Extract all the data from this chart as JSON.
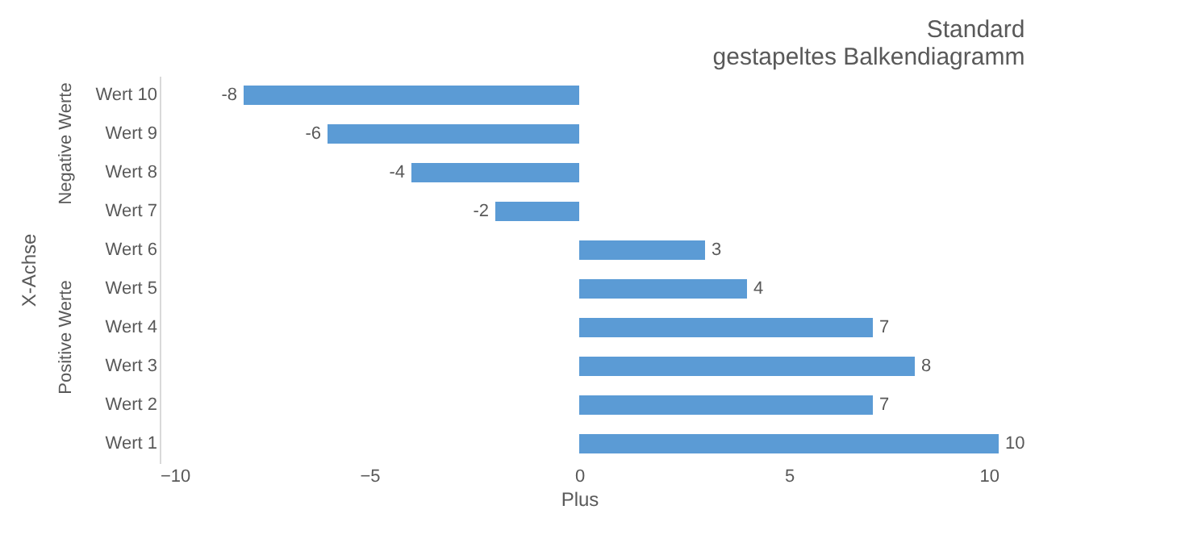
{
  "chart_data": {
    "type": "bar",
    "orientation": "horizontal",
    "title": [
      "Standard",
      "gestapeltes Balkendiagramm"
    ],
    "xlabel": "Plus",
    "ylabel": "X-Achse",
    "categories": [
      "Wert 10",
      "Wert 9",
      "Wert 8",
      "Wert 7",
      "Wert 6",
      "Wert 5",
      "Wert 4",
      "Wert 3",
      "Wert 2",
      "Wert 1"
    ],
    "values": [
      -8,
      -6,
      -4,
      -2,
      3,
      4,
      7,
      8,
      7,
      10
    ],
    "color": "#5b9bd5",
    "xlim": [
      -10,
      10
    ],
    "xticks": [
      -10,
      -5,
      0,
      5,
      10
    ],
    "annotations": [
      "Positive Werte",
      "Negative Werte"
    ],
    "data_labels": true,
    "grid": false
  }
}
